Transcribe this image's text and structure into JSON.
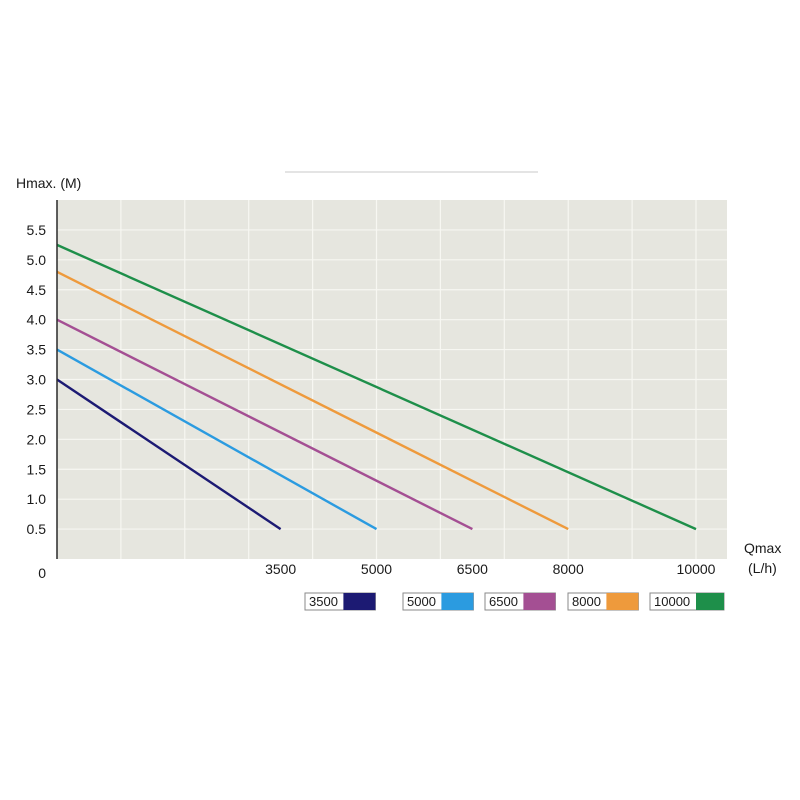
{
  "chart_data": {
    "type": "line",
    "ylabel": "Hmax. (M)",
    "xlabel_lines": [
      "Qmax",
      "(L/h)"
    ],
    "y_ticks": [
      "5.5",
      "5.0",
      "4.5",
      "4.0",
      "3.5",
      "3.0",
      "2.5",
      "2.0",
      "1.5",
      "1.0",
      "0.5",
      "0"
    ],
    "x_tick_labels": [
      "3500",
      "5000",
      "6500",
      "8000",
      "10000"
    ],
    "ylim": [
      0,
      6
    ],
    "xlim": [
      0,
      10000
    ],
    "grid": true,
    "series": [
      {
        "name": "3500",
        "color": "#1c1a73",
        "x": [
          0,
          3500
        ],
        "y": [
          3.0,
          0.5
        ]
      },
      {
        "name": "5000",
        "color": "#2b9be0",
        "x": [
          0,
          5000
        ],
        "y": [
          3.5,
          0.5
        ]
      },
      {
        "name": "6500",
        "color": "#a44f93",
        "x": [
          0,
          6500
        ],
        "y": [
          4.0,
          0.5
        ]
      },
      {
        "name": "8000",
        "color": "#ee9a3c",
        "x": [
          0,
          8000
        ],
        "y": [
          4.8,
          0.5
        ]
      },
      {
        "name": "10000",
        "color": "#1e8f4a",
        "x": [
          0,
          10000
        ],
        "y": [
          5.25,
          0.5
        ]
      }
    ],
    "legend_position": "bottom-right",
    "colors": {
      "plot_background": "#e6e6df",
      "grid": "#f7f7f2",
      "axis": "#2a2a2a"
    }
  }
}
